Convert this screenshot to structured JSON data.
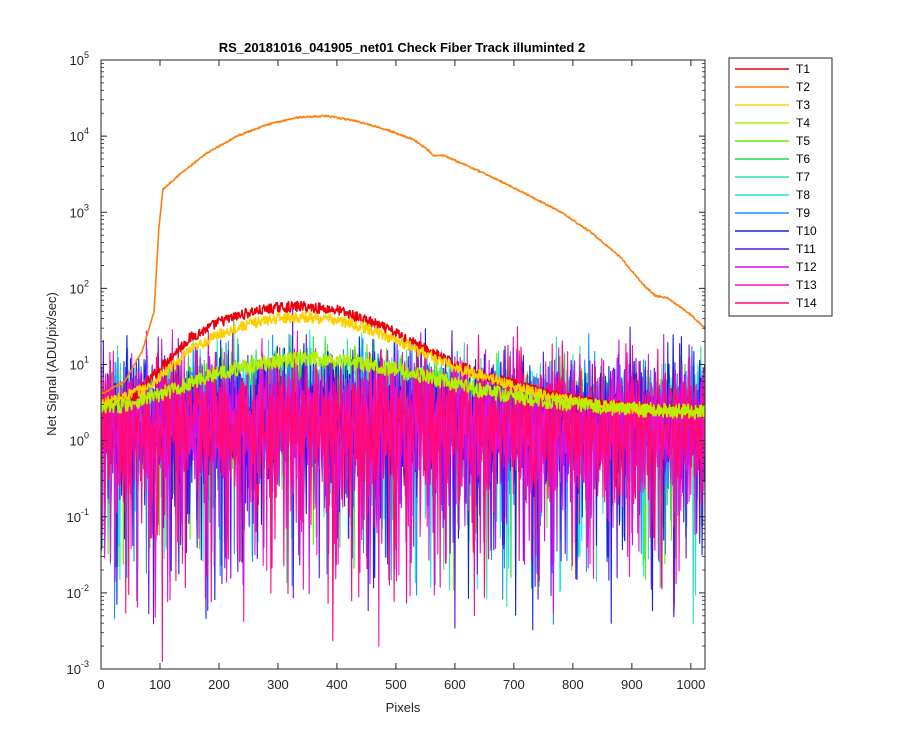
{
  "chart_data": {
    "type": "line",
    "title": "RS_20181016_041905_net01   Check Fiber     Track illuminted 2",
    "xlabel": "Pixels",
    "ylabel": "Net Signal (ADU/pix/sec)",
    "xlim": [
      0,
      1024
    ],
    "ylim": [
      0.001,
      100000
    ],
    "yscale": "log",
    "grid": false,
    "legend_position": "outside-top-right",
    "x_ticks": [
      0,
      100,
      200,
      300,
      400,
      500,
      600,
      700,
      800,
      900,
      1000
    ],
    "x_tick_labels": [
      "0",
      "100",
      "200",
      "300",
      "400",
      "500",
      "600",
      "700",
      "800",
      "900",
      "1000"
    ],
    "y_ticks": [
      0.001,
      0.01,
      0.1,
      1,
      10,
      100,
      1000,
      10000,
      100000
    ],
    "y_tick_exponents": [
      "-3",
      "-2",
      "-1",
      "0",
      "1",
      "2",
      "3",
      "4",
      "5"
    ],
    "y_tick_base": "10",
    "series": [
      {
        "name": "T1",
        "color": "#e8000b",
        "kind": "smooth",
        "knots": [
          [
            0,
            3
          ],
          [
            60,
            4
          ],
          [
            100,
            9
          ],
          [
            150,
            22
          ],
          [
            200,
            36
          ],
          [
            250,
            48
          ],
          [
            300,
            56
          ],
          [
            340,
            58
          ],
          [
            400,
            52
          ],
          [
            450,
            38
          ],
          [
            500,
            26
          ],
          [
            550,
            16
          ],
          [
            600,
            10
          ],
          [
            650,
            7
          ],
          [
            700,
            5.5
          ],
          [
            750,
            4.2
          ],
          [
            800,
            3.5
          ],
          [
            850,
            3
          ],
          [
            900,
            2.7
          ],
          [
            950,
            2.5
          ],
          [
            1024,
            2.4
          ]
        ],
        "noise": 0.07
      },
      {
        "name": "T2",
        "color": "#ff7f0e",
        "kind": "smooth",
        "knots": [
          [
            0,
            4
          ],
          [
            40,
            6
          ],
          [
            70,
            15
          ],
          [
            90,
            50
          ],
          [
            98,
            600
          ],
          [
            105,
            2000
          ],
          [
            130,
            3000
          ],
          [
            180,
            6000
          ],
          [
            230,
            10000
          ],
          [
            280,
            14000
          ],
          [
            330,
            17500
          ],
          [
            380,
            18500
          ],
          [
            430,
            16000
          ],
          [
            480,
            12500
          ],
          [
            530,
            9000
          ],
          [
            555,
            6500
          ],
          [
            565,
            5500
          ],
          [
            580,
            5600
          ],
          [
            630,
            3800
          ],
          [
            680,
            2500
          ],
          [
            730,
            1600
          ],
          [
            780,
            1000
          ],
          [
            830,
            550
          ],
          [
            880,
            260
          ],
          [
            920,
            110
          ],
          [
            940,
            80
          ],
          [
            960,
            75
          ],
          [
            1000,
            45
          ],
          [
            1024,
            30
          ]
        ],
        "noise": 0.01
      },
      {
        "name": "T3",
        "color": "#ffd000",
        "kind": "smooth",
        "knots": [
          [
            0,
            3
          ],
          [
            80,
            5
          ],
          [
            150,
            15
          ],
          [
            200,
            25
          ],
          [
            250,
            34
          ],
          [
            300,
            41
          ],
          [
            350,
            42
          ],
          [
            400,
            38
          ],
          [
            450,
            30
          ],
          [
            500,
            21
          ],
          [
            550,
            14
          ],
          [
            600,
            9
          ],
          [
            650,
            7
          ],
          [
            700,
            5.2
          ],
          [
            750,
            4
          ],
          [
            800,
            3.4
          ],
          [
            850,
            2.9
          ],
          [
            900,
            2.6
          ],
          [
            950,
            2.4
          ],
          [
            1024,
            2.3
          ]
        ],
        "noise": 0.07
      },
      {
        "name": "T4",
        "color": "#b5f000",
        "kind": "smooth",
        "knots": [
          [
            0,
            2.5
          ],
          [
            100,
            4
          ],
          [
            200,
            8
          ],
          [
            300,
            11
          ],
          [
            350,
            12
          ],
          [
            400,
            11.5
          ],
          [
            450,
            10
          ],
          [
            500,
            8.5
          ],
          [
            550,
            7
          ],
          [
            600,
            5.5
          ],
          [
            650,
            4.5
          ],
          [
            700,
            3.8
          ],
          [
            750,
            3.3
          ],
          [
            800,
            3
          ],
          [
            900,
            2.6
          ],
          [
            1024,
            2.4
          ]
        ],
        "noise": 0.1
      },
      {
        "name": "T5",
        "color": "#5bf000",
        "kind": "noisy",
        "base": [
          [
            0,
            2.5
          ],
          [
            100,
            3.5
          ],
          [
            200,
            5
          ],
          [
            350,
            6.5
          ],
          [
            450,
            6
          ],
          [
            550,
            4.5
          ],
          [
            650,
            3.5
          ],
          [
            800,
            3
          ],
          [
            1024,
            2.5
          ]
        ],
        "sigma": 0.22,
        "dipRate": 0.04
      },
      {
        "name": "T6",
        "color": "#22d84a",
        "kind": "noisy",
        "base": [
          [
            0,
            2.3
          ],
          [
            100,
            3
          ],
          [
            200,
            4
          ],
          [
            350,
            5
          ],
          [
            450,
            4.5
          ],
          [
            550,
            3.6
          ],
          [
            650,
            3
          ],
          [
            1024,
            2.4
          ]
        ],
        "sigma": 0.25,
        "dipRate": 0.05
      },
      {
        "name": "T7",
        "color": "#2fe2a8",
        "kind": "noisy",
        "base": [
          [
            0,
            2.2
          ],
          [
            200,
            3
          ],
          [
            350,
            3.6
          ],
          [
            500,
            3.2
          ],
          [
            700,
            2.6
          ],
          [
            1024,
            2.2
          ]
        ],
        "sigma": 0.3,
        "dipRate": 0.06
      },
      {
        "name": "T8",
        "color": "#18e8e8",
        "kind": "noisy",
        "base": [
          [
            0,
            2
          ],
          [
            350,
            2.6
          ],
          [
            700,
            2.2
          ],
          [
            1024,
            2
          ]
        ],
        "sigma": 0.35,
        "dipRate": 0.07
      },
      {
        "name": "T9",
        "color": "#1e90ff",
        "kind": "noisy",
        "base": [
          [
            0,
            1.9
          ],
          [
            350,
            2.4
          ],
          [
            700,
            2
          ],
          [
            1024,
            1.9
          ]
        ],
        "sigma": 0.38,
        "dipRate": 0.08
      },
      {
        "name": "T10",
        "color": "#0a28d8",
        "kind": "noisy",
        "base": [
          [
            0,
            1.8
          ],
          [
            350,
            2.2
          ],
          [
            700,
            1.9
          ],
          [
            1024,
            1.8
          ]
        ],
        "sigma": 0.42,
        "dipRate": 0.09
      },
      {
        "name": "T11",
        "color": "#5a14ec",
        "kind": "noisy",
        "base": [
          [
            0,
            1.7
          ],
          [
            350,
            2.1
          ],
          [
            700,
            1.8
          ],
          [
            1024,
            1.7
          ]
        ],
        "sigma": 0.42,
        "dipRate": 0.09
      },
      {
        "name": "T12",
        "color": "#cc10e8",
        "kind": "noisy",
        "base": [
          [
            0,
            1.6
          ],
          [
            350,
            2
          ],
          [
            700,
            1.7
          ],
          [
            1024,
            1.6
          ]
        ],
        "sigma": 0.42,
        "dipRate": 0.09
      },
      {
        "name": "T13",
        "color": "#f014bc",
        "kind": "noisy",
        "base": [
          [
            0,
            1.5
          ],
          [
            350,
            1.9
          ],
          [
            700,
            1.6
          ],
          [
            1024,
            1.5
          ]
        ],
        "sigma": 0.42,
        "dipRate": 0.09
      },
      {
        "name": "T14",
        "color": "#ff0a78",
        "kind": "noisy",
        "base": [
          [
            0,
            1.5
          ],
          [
            350,
            1.9
          ],
          [
            700,
            1.6
          ],
          [
            1024,
            1.5
          ]
        ],
        "sigma": 0.42,
        "dipRate": 0.09
      }
    ]
  }
}
